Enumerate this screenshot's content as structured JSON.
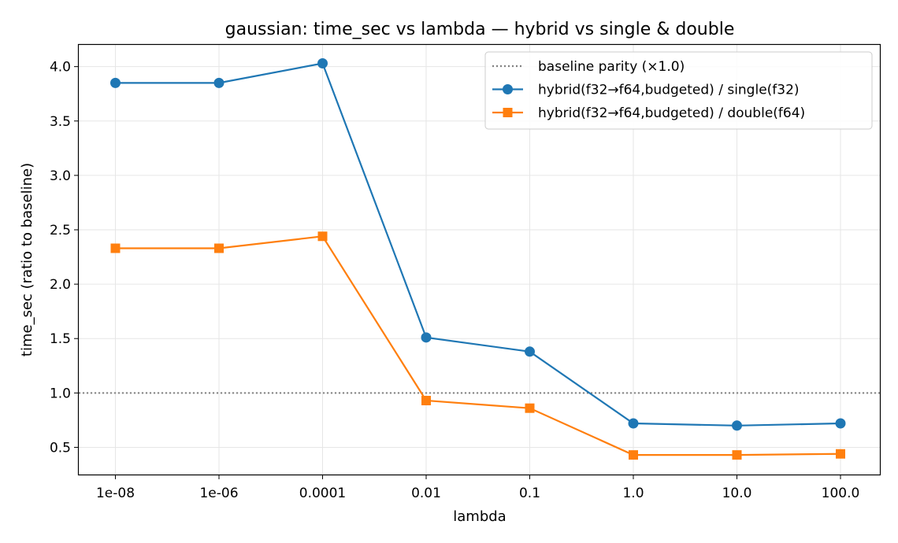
{
  "chart_data": {
    "type": "line",
    "title": "gaussian: time_sec vs lambda — hybrid vs single & double",
    "xlabel": "lambda",
    "ylabel": "time_sec (ratio to baseline)",
    "categories": [
      "1e-08",
      "1e-06",
      "0.0001",
      "0.01",
      "0.1",
      "1.0",
      "10.0",
      "100.0"
    ],
    "ylim": [
      0.25,
      4.2
    ],
    "yticks": [
      0.5,
      1.0,
      1.5,
      2.0,
      2.5,
      3.0,
      3.5,
      4.0
    ],
    "ytick_labels": [
      "0.5",
      "1.0",
      "1.5",
      "2.0",
      "2.5",
      "3.0",
      "3.5",
      "4.0"
    ],
    "grid": true,
    "legend_position": "top-right",
    "reference_line": {
      "name": "baseline parity (×1.0)",
      "y": 1.0,
      "color": "#808080",
      "style": "dotted"
    },
    "series": [
      {
        "name": "hybrid(f32→f64,budgeted) / single(f32)",
        "color": "#1f77b4",
        "marker": "circle",
        "values": [
          3.85,
          3.85,
          4.03,
          1.51,
          1.38,
          0.72,
          0.7,
          0.72
        ]
      },
      {
        "name": "hybrid(f32→f64,budgeted) / double(f64)",
        "color": "#ff7f0e",
        "marker": "square",
        "values": [
          2.33,
          2.33,
          2.44,
          0.93,
          0.86,
          0.43,
          0.43,
          0.44
        ]
      }
    ]
  }
}
